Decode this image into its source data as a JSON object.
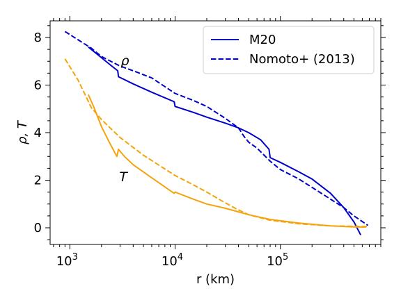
{
  "chart_data": {
    "type": "line",
    "xlabel": "r (km)",
    "ylabel": "ρ, T",
    "xscale": "log",
    "xlim": [
      650,
      900000
    ],
    "ylim": [
      -0.7,
      8.7
    ],
    "xticks": [
      {
        "value": 1000,
        "base": "10",
        "exp": "3"
      },
      {
        "value": 10000,
        "base": "10",
        "exp": "4"
      },
      {
        "value": 100000,
        "base": "10",
        "exp": "5"
      }
    ],
    "yticks": [
      0,
      2,
      4,
      6,
      8
    ],
    "legend": {
      "placement": "top-right"
    },
    "colors": {
      "rho": "#0000cd",
      "T": "#f5a30c"
    },
    "annotations": [
      {
        "text": "ρ",
        "x": 3050,
        "y": 6.85
      },
      {
        "text": "T",
        "x": 2950,
        "y": 1.95
      }
    ],
    "series": [
      {
        "name": "M20",
        "legend": true,
        "quantity": "rho",
        "style": "solid",
        "points": [
          [
            1500,
            7.6
          ],
          [
            2000,
            7.15
          ],
          [
            2500,
            6.8
          ],
          [
            2850,
            6.6
          ],
          [
            2900,
            6.35
          ],
          [
            4000,
            6.05
          ],
          [
            6000,
            5.7
          ],
          [
            9800,
            5.3
          ],
          [
            10000,
            5.1
          ],
          [
            15000,
            4.85
          ],
          [
            20000,
            4.65
          ],
          [
            30000,
            4.4
          ],
          [
            40000,
            4.2
          ],
          [
            50000,
            4.0
          ],
          [
            65000,
            3.7
          ],
          [
            78000,
            3.3
          ],
          [
            80000,
            2.95
          ],
          [
            100000,
            2.75
          ],
          [
            150000,
            2.35
          ],
          [
            200000,
            2.05
          ],
          [
            300000,
            1.45
          ],
          [
            400000,
            0.85
          ],
          [
            500000,
            0.25
          ],
          [
            580000,
            -0.3
          ]
        ]
      },
      {
        "name": "Nomoto+ (2013)",
        "legend": true,
        "quantity": "rho",
        "style": "dashed",
        "points": [
          [
            900,
            8.25
          ],
          [
            1200,
            7.9
          ],
          [
            1600,
            7.55
          ],
          [
            2000,
            7.2
          ],
          [
            3000,
            6.8
          ],
          [
            4000,
            6.6
          ],
          [
            6000,
            6.3
          ],
          [
            10000,
            5.65
          ],
          [
            15000,
            5.35
          ],
          [
            20000,
            5.1
          ],
          [
            30000,
            4.6
          ],
          [
            40000,
            4.2
          ],
          [
            45000,
            3.85
          ],
          [
            50000,
            3.6
          ],
          [
            60000,
            3.35
          ],
          [
            80000,
            2.8
          ],
          [
            100000,
            2.45
          ],
          [
            150000,
            2.05
          ],
          [
            200000,
            1.7
          ],
          [
            300000,
            1.2
          ],
          [
            400000,
            0.85
          ],
          [
            500000,
            0.5
          ],
          [
            680000,
            0.1
          ]
        ]
      },
      {
        "name": "",
        "legend": false,
        "quantity": "T",
        "style": "solid",
        "points": [
          [
            1500,
            5.6
          ],
          [
            1700,
            5.05
          ],
          [
            2000,
            4.25
          ],
          [
            2400,
            3.55
          ],
          [
            2800,
            3.0
          ],
          [
            2900,
            3.3
          ],
          [
            3300,
            3.0
          ],
          [
            4000,
            2.65
          ],
          [
            6000,
            2.1
          ],
          [
            9800,
            1.45
          ],
          [
            10000,
            1.5
          ],
          [
            15000,
            1.2
          ],
          [
            20000,
            1.0
          ],
          [
            30000,
            0.82
          ],
          [
            50000,
            0.55
          ],
          [
            80000,
            0.35
          ],
          [
            150000,
            0.2
          ],
          [
            300000,
            0.08
          ],
          [
            500000,
            0.04
          ],
          [
            650000,
            0.03
          ]
        ]
      },
      {
        "name": "",
        "legend": false,
        "quantity": "T",
        "style": "dashed",
        "points": [
          [
            900,
            7.1
          ],
          [
            1200,
            6.2
          ],
          [
            1600,
            5.05
          ],
          [
            2000,
            4.55
          ],
          [
            3000,
            3.8
          ],
          [
            5000,
            3.05
          ],
          [
            10000,
            2.2
          ],
          [
            15000,
            1.8
          ],
          [
            20000,
            1.5
          ],
          [
            30000,
            1.05
          ],
          [
            40000,
            0.75
          ],
          [
            50000,
            0.55
          ],
          [
            80000,
            0.32
          ],
          [
            150000,
            0.17
          ],
          [
            300000,
            0.08
          ],
          [
            680000,
            0.05
          ]
        ]
      }
    ]
  }
}
